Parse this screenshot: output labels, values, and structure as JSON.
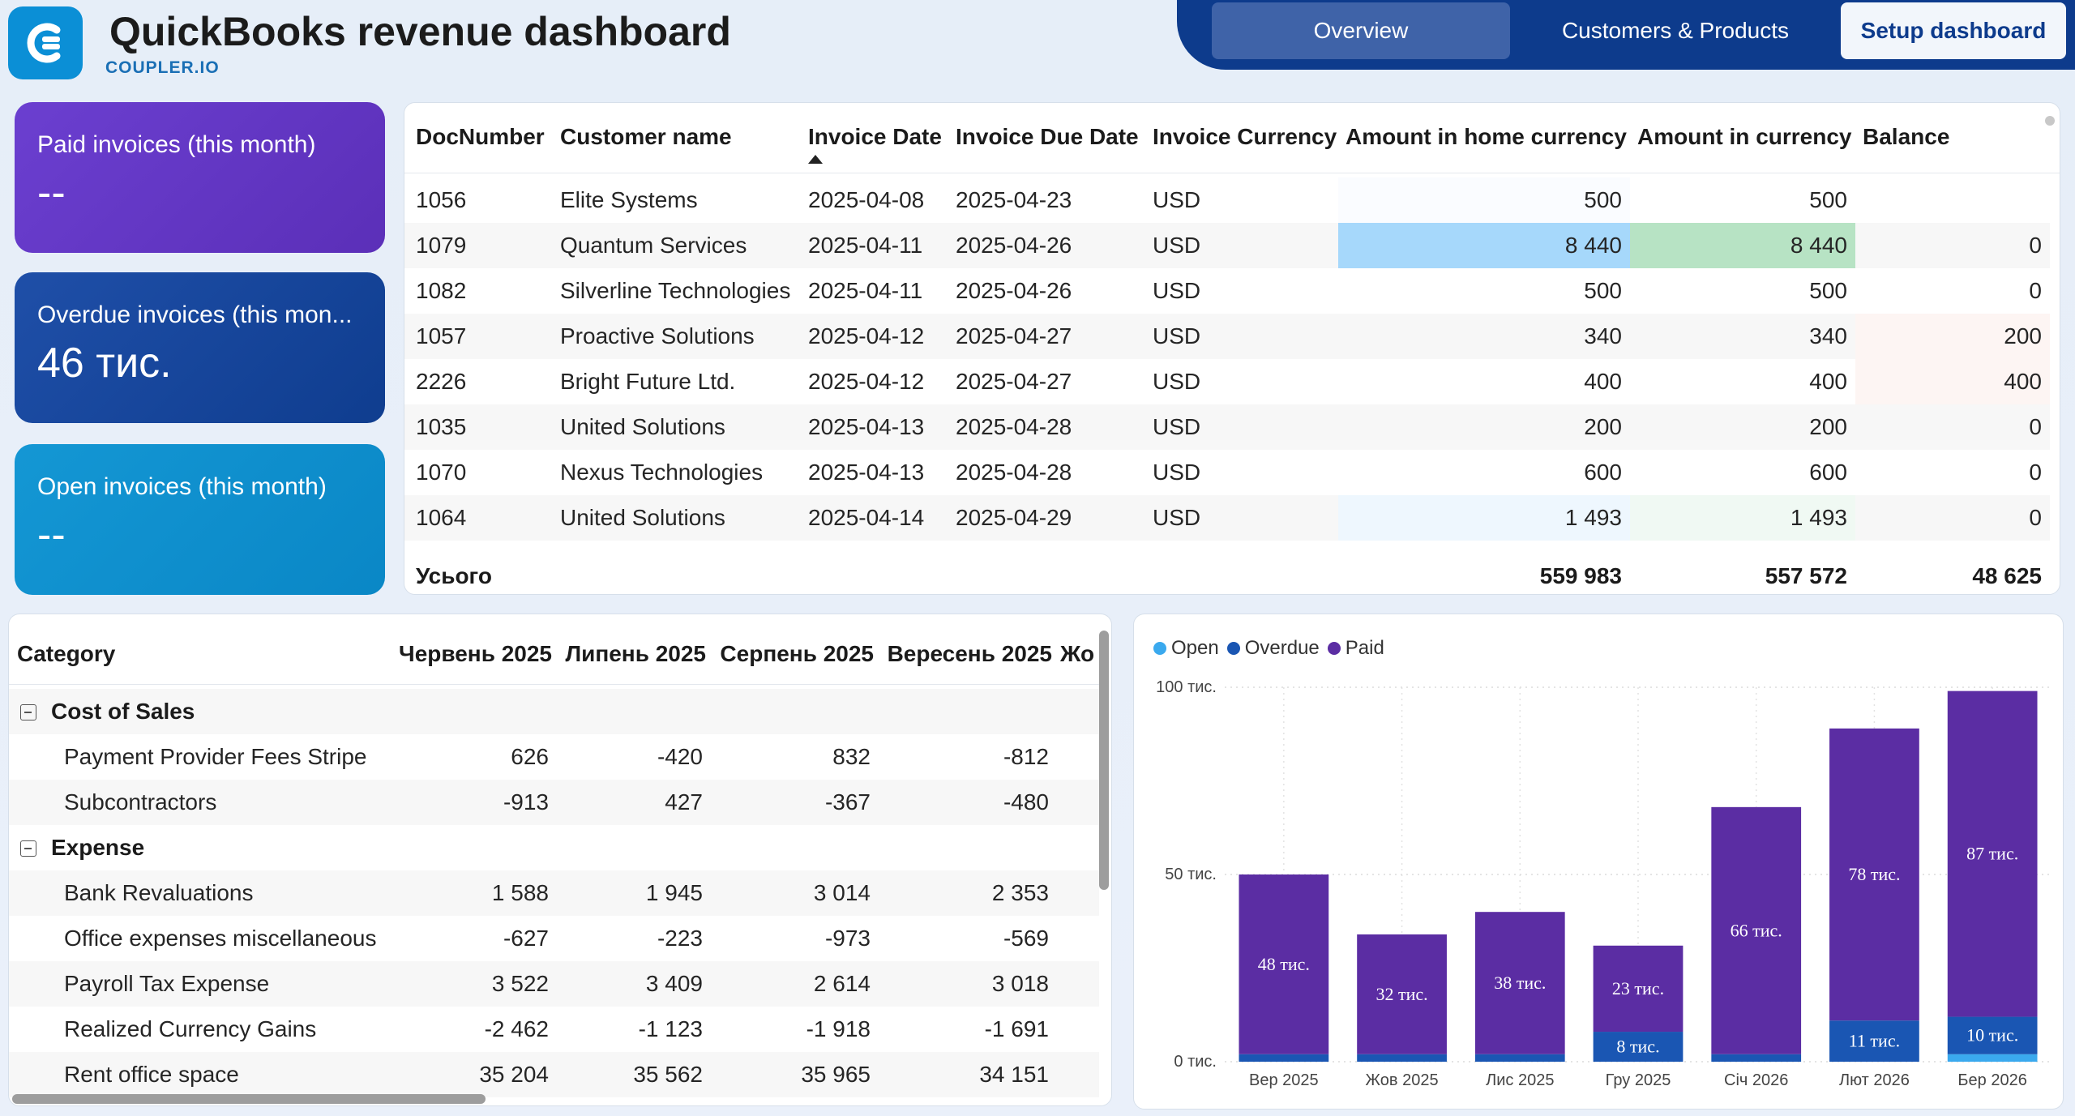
{
  "header": {
    "title": "QuickBooks revenue dashboard",
    "subtitle": "COUPLER.IO",
    "tabs": [
      "Overview",
      "Customers & Products"
    ],
    "setup_label": "Setup dashboard"
  },
  "colors": {
    "paid": "#5b2da3",
    "overdue": "#1a56b3",
    "open": "#3aa9ee",
    "nav": "#0d3b8c"
  },
  "kpis": {
    "paid": {
      "label": "Paid invoices (this month)",
      "value": "--"
    },
    "overdue": {
      "label": "Overdue invoices (this mon...",
      "value": "46 тис."
    },
    "open": {
      "label": "Open invoices (this month)",
      "value": "--"
    }
  },
  "invoices": {
    "columns": [
      "DocNumber",
      "Customer name",
      "Invoice Date",
      "Invoice Due Date",
      "Invoice Currency",
      "Amount in home currency",
      "Amount in currency",
      "Balance"
    ],
    "rows": [
      {
        "doc": "1056",
        "customer": "Elite Systems",
        "date": "2025-04-08",
        "due": "2025-04-23",
        "cur": "USD",
        "home": "500",
        "amount": "500",
        "balance": ""
      },
      {
        "doc": "1079",
        "customer": "Quantum Services",
        "date": "2025-04-11",
        "due": "2025-04-26",
        "cur": "USD",
        "home": "8 440",
        "amount": "8 440",
        "balance": "0"
      },
      {
        "doc": "1082",
        "customer": "Silverline Technologies",
        "date": "2025-04-11",
        "due": "2025-04-26",
        "cur": "USD",
        "home": "500",
        "amount": "500",
        "balance": "0"
      },
      {
        "doc": "1057",
        "customer": "Proactive Solutions",
        "date": "2025-04-12",
        "due": "2025-04-27",
        "cur": "USD",
        "home": "340",
        "amount": "340",
        "balance": "200"
      },
      {
        "doc": "2226",
        "customer": "Bright Future Ltd.",
        "date": "2025-04-12",
        "due": "2025-04-27",
        "cur": "USD",
        "home": "400",
        "amount": "400",
        "balance": "400"
      },
      {
        "doc": "1035",
        "customer": "United Solutions",
        "date": "2025-04-13",
        "due": "2025-04-28",
        "cur": "USD",
        "home": "200",
        "amount": "200",
        "balance": "0"
      },
      {
        "doc": "1070",
        "customer": "Nexus Technologies",
        "date": "2025-04-13",
        "due": "2025-04-28",
        "cur": "USD",
        "home": "600",
        "amount": "600",
        "balance": "0"
      },
      {
        "doc": "1064",
        "customer": "United Solutions",
        "date": "2025-04-14",
        "due": "2025-04-29",
        "cur": "USD",
        "home": "1 493",
        "amount": "1 493",
        "balance": "0"
      }
    ],
    "total": {
      "label": "Усього",
      "home": "559 983",
      "amount": "557 572",
      "balance": "48 625"
    }
  },
  "pl": {
    "columns": [
      "Category",
      "Червень 2025",
      "Липень 2025",
      "Серпень 2025",
      "Вересень 2025",
      "Жо"
    ],
    "rows": [
      {
        "group": true,
        "label": "Cost of Sales",
        "values": [
          "",
          "",
          "",
          ""
        ]
      },
      {
        "group": false,
        "label": "Payment Provider Fees Stripe",
        "values": [
          "626",
          "-420",
          "832",
          "-812"
        ]
      },
      {
        "group": false,
        "label": "Subcontractors",
        "values": [
          "-913",
          "427",
          "-367",
          "-480"
        ]
      },
      {
        "group": true,
        "label": "Expense",
        "values": [
          "",
          "",
          "",
          ""
        ]
      },
      {
        "group": false,
        "label": "Bank Revaluations",
        "values": [
          "1 588",
          "1 945",
          "3 014",
          "2 353"
        ]
      },
      {
        "group": false,
        "label": "Office expenses miscellaneous",
        "values": [
          "-627",
          "-223",
          "-973",
          "-569"
        ]
      },
      {
        "group": false,
        "label": "Payroll Tax Expense",
        "values": [
          "3 522",
          "3 409",
          "2 614",
          "3 018"
        ]
      },
      {
        "group": false,
        "label": "Realized Currency Gains",
        "values": [
          "-2 462",
          "-1 123",
          "-1 918",
          "-1 691"
        ]
      },
      {
        "group": false,
        "label": "Rent office space",
        "values": [
          "35 204",
          "35 562",
          "35 965",
          "34 151"
        ]
      }
    ]
  },
  "chart_data": {
    "type": "bar",
    "stacked": true,
    "categories": [
      "Вер 2025",
      "Жов 2025",
      "Лис 2025",
      "Гру 2025",
      "Січ 2026",
      "Лют 2026",
      "Бер 2026"
    ],
    "series": [
      {
        "name": "Open",
        "values": [
          0,
          0,
          0,
          0,
          0,
          0,
          2
        ]
      },
      {
        "name": "Overdue",
        "values": [
          2,
          2,
          2,
          8,
          2,
          11,
          10
        ]
      },
      {
        "name": "Paid",
        "values": [
          48,
          32,
          38,
          23,
          66,
          78,
          87
        ]
      }
    ],
    "data_labels": {
      "Overdue": [
        "",
        "",
        "",
        "8 тис.",
        "",
        "11 тис.",
        "10 тис."
      ],
      "Paid": [
        "48 тис.",
        "32 тис.",
        "38 тис.",
        "23 тис.",
        "66 тис.",
        "78 тис.",
        "87 тис."
      ]
    },
    "y_ticks": [
      0,
      50,
      100
    ],
    "y_tick_labels": [
      "0 тис.",
      "50 тис.",
      "100 тис."
    ],
    "ylim": [
      0,
      100
    ],
    "legend_position": "top-left",
    "grid": true
  }
}
